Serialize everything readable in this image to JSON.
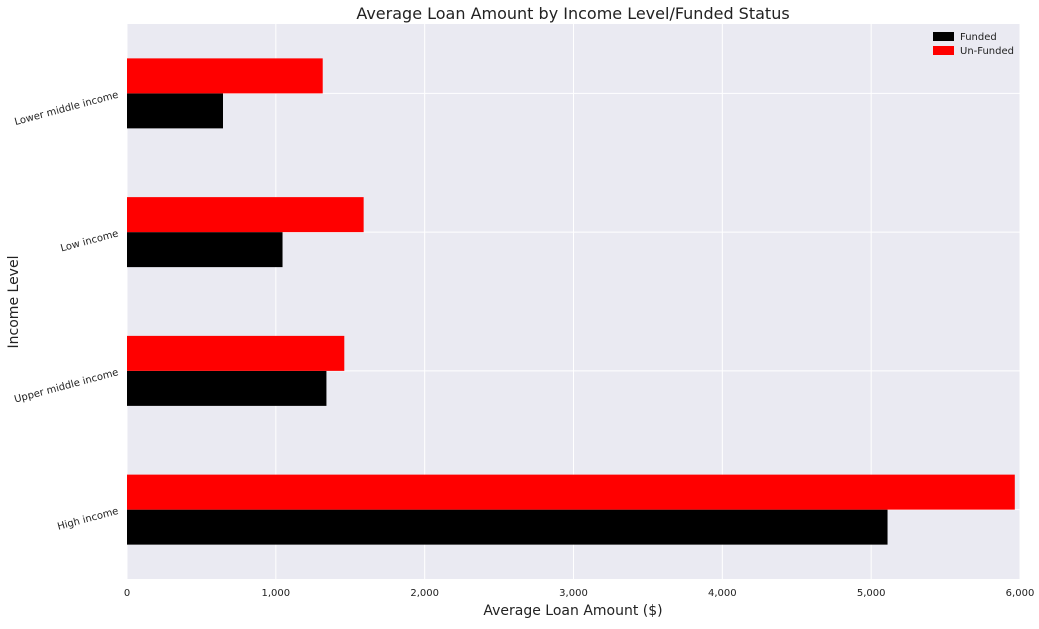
{
  "chart_data": {
    "type": "bar",
    "orientation": "horizontal",
    "title": "Average Loan Amount by Income Level/Funded Status",
    "xlabel": "Average Loan Amount ($)",
    "ylabel": "Income Level",
    "categories": [
      "High income",
      "Upper middle income",
      "Low income",
      "Lower middle income"
    ],
    "series": [
      {
        "name": "Funded",
        "color": "#000000",
        "values": [
          5110,
          1340,
          1045,
          645
        ]
      },
      {
        "name": "Un-Funded",
        "color": "#ff0000",
        "values": [
          5965,
          1460,
          1590,
          1315
        ]
      }
    ],
    "xlim": [
      0,
      6000
    ],
    "xticks": [
      {
        "value": 0,
        "label": "0"
      },
      {
        "value": 1000,
        "label": "1,000"
      },
      {
        "value": 2000,
        "label": "2,000"
      },
      {
        "value": 3000,
        "label": "3,000"
      },
      {
        "value": 4000,
        "label": "4,000"
      },
      {
        "value": 5000,
        "label": "5,000"
      },
      {
        "value": 6000,
        "label": "6,000"
      }
    ],
    "grid": true,
    "legend_position": "top-right",
    "background_color": "#eaeaf2",
    "grid_color": "#ffffff"
  }
}
